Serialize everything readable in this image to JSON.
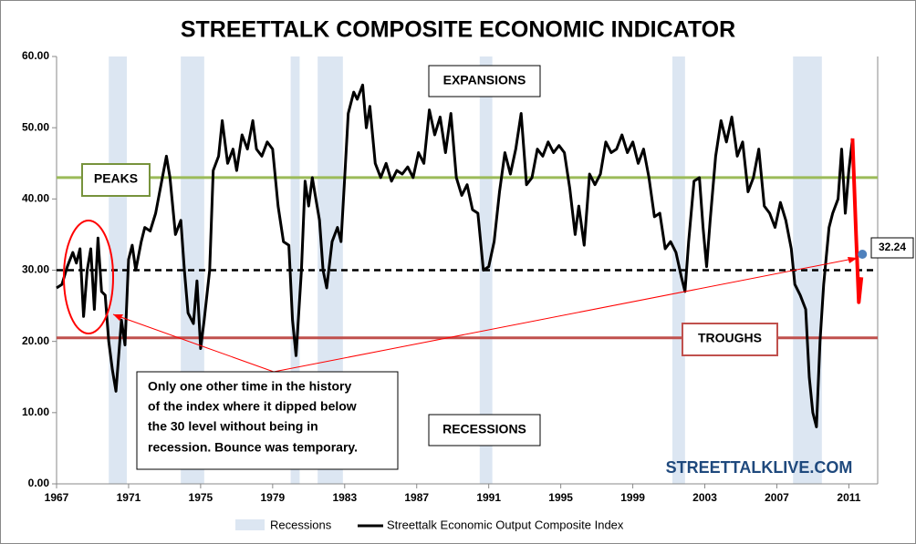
{
  "chart_data": {
    "type": "line",
    "title": "STREETTALK COMPOSITE ECONOMIC INDICATOR",
    "xlim": [
      1967,
      2012.6
    ],
    "xticks": [
      1967,
      1971,
      1975,
      1979,
      1983,
      1987,
      1991,
      1995,
      1999,
      2003,
      2007,
      2011
    ],
    "ylim": [
      0,
      60
    ],
    "yticks": [
      {
        "value": 0,
        "label": "0.00"
      },
      {
        "value": 10,
        "label": "10.00"
      },
      {
        "value": 20,
        "label": "20.00"
      },
      {
        "value": 30,
        "label": "30.00"
      },
      {
        "value": 40,
        "label": "40.00"
      },
      {
        "value": 50,
        "label": "50.00"
      },
      {
        "value": 60,
        "label": "60.00"
      }
    ],
    "recessions": {
      "name": "Recessions",
      "color": "#dce6f2",
      "ranges": [
        [
          1969.9,
          1970.9
        ],
        [
          1973.9,
          1975.2
        ],
        [
          1980.0,
          1980.5
        ],
        [
          1981.5,
          1982.9
        ],
        [
          1990.5,
          1991.2
        ],
        [
          2001.2,
          2001.9
        ],
        [
          2007.9,
          2009.5
        ]
      ]
    },
    "series": [
      {
        "name": "Streettalk Economic Output Composite Index",
        "color": "#000000",
        "x": [
          1967.0,
          1967.3,
          1967.6,
          1967.9,
          1968.1,
          1968.3,
          1968.5,
          1968.7,
          1968.9,
          1969.1,
          1969.3,
          1969.5,
          1969.7,
          1969.9,
          1970.1,
          1970.3,
          1970.6,
          1970.8,
          1971.0,
          1971.2,
          1971.4,
          1971.7,
          1971.9,
          1972.2,
          1972.5,
          1972.8,
          1973.1,
          1973.3,
          1973.6,
          1973.9,
          1974.1,
          1974.3,
          1974.6,
          1974.8,
          1975.0,
          1975.2,
          1975.5,
          1975.7,
          1976.0,
          1976.2,
          1976.5,
          1976.8,
          1977.0,
          1977.3,
          1977.6,
          1977.9,
          1978.1,
          1978.4,
          1978.7,
          1979.0,
          1979.3,
          1979.6,
          1979.9,
          1980.1,
          1980.3,
          1980.6,
          1980.8,
          1981.0,
          1981.2,
          1981.4,
          1981.6,
          1981.8,
          1982.0,
          1982.3,
          1982.6,
          1982.8,
          1983.0,
          1983.2,
          1983.5,
          1983.7,
          1984.0,
          1984.2,
          1984.4,
          1984.7,
          1985.0,
          1985.3,
          1985.6,
          1985.9,
          1986.2,
          1986.5,
          1986.8,
          1987.1,
          1987.4,
          1987.7,
          1988.0,
          1988.3,
          1988.6,
          1988.9,
          1989.2,
          1989.5,
          1989.8,
          1990.1,
          1990.4,
          1990.7,
          1991.0,
          1991.3,
          1991.6,
          1991.9,
          1992.2,
          1992.5,
          1992.8,
          1993.1,
          1993.4,
          1993.7,
          1994.0,
          1994.3,
          1994.6,
          1994.9,
          1995.2,
          1995.5,
          1995.8,
          1996.0,
          1996.3,
          1996.6,
          1996.9,
          1997.2,
          1997.5,
          1997.8,
          1998.1,
          1998.4,
          1998.7,
          1999.0,
          1999.3,
          1999.6,
          1999.9,
          2000.2,
          2000.5,
          2000.8,
          2001.1,
          2001.4,
          2001.7,
          2001.9,
          2002.1,
          2002.4,
          2002.7,
          2002.9,
          2003.1,
          2003.3,
          2003.6,
          2003.9,
          2004.2,
          2004.5,
          2004.8,
          2005.1,
          2005.4,
          2005.7,
          2006.0,
          2006.3,
          2006.6,
          2006.9,
          2007.2,
          2007.5,
          2007.8,
          2008.0,
          2008.3,
          2008.6,
          2008.8,
          2009.0,
          2009.2,
          2009.4,
          2009.6,
          2009.9,
          2010.1,
          2010.4,
          2010.6,
          2010.8,
          2011.0,
          2011.2
        ],
        "values": [
          27.5,
          28,
          30.5,
          32.5,
          31,
          33,
          23.5,
          30,
          33,
          24.5,
          34.5,
          27,
          26.5,
          20,
          16,
          13,
          23,
          19.5,
          31.5,
          33.5,
          30,
          34,
          36,
          35.5,
          38,
          42,
          46,
          43,
          35,
          37,
          30,
          24,
          22.5,
          28.5,
          19,
          23,
          30,
          44,
          46,
          51,
          45,
          47,
          44,
          49,
          47,
          51,
          47,
          46,
          48,
          47,
          39,
          34,
          33.5,
          23,
          18,
          30,
          42.5,
          39,
          43,
          40,
          37,
          30,
          27.5,
          34,
          36,
          34,
          43,
          52,
          55,
          54,
          56,
          50,
          53,
          45,
          43,
          45,
          42.5,
          44,
          43.5,
          44.5,
          43,
          46.5,
          45,
          52.5,
          49,
          51.5,
          46.5,
          52,
          43,
          40.5,
          42,
          38.5,
          38,
          30,
          30.5,
          34,
          41,
          46.5,
          43.5,
          47,
          52,
          42,
          43,
          47,
          46,
          48,
          46.5,
          47.5,
          46.5,
          41.5,
          35,
          39,
          33.5,
          43.5,
          42,
          43.5,
          48,
          46.5,
          47,
          49,
          46.5,
          48,
          45,
          47,
          43,
          37.5,
          38,
          33,
          34,
          32.5,
          29,
          27,
          34,
          42.5,
          43,
          36,
          30.5,
          37,
          46,
          51,
          48,
          51.5,
          46,
          48,
          41,
          43,
          47,
          39,
          38,
          36,
          39.5,
          37,
          33,
          28,
          26.5,
          24.5,
          15,
          10,
          8,
          20,
          28,
          36,
          38,
          40,
          47,
          38,
          44,
          48.5
        ]
      }
    ],
    "projection": {
      "color": "#ff0000",
      "x": [
        2011.2,
        2011.4,
        2011.55,
        2011.7
      ],
      "values": [
        48.5,
        35,
        25.5,
        29
      ]
    },
    "marker": {
      "x": 2011.75,
      "value": 32.24,
      "color": "#4f81bd"
    },
    "reference_lines": [
      {
        "value": 43,
        "color": "#9bbb59",
        "style": "solid"
      },
      {
        "value": 30,
        "color": "#000000",
        "style": "dashed"
      },
      {
        "value": 20.5,
        "color": "#c0504d",
        "style": "solid"
      }
    ],
    "annotations": {
      "expansions": "EXPANSIONS",
      "recessions": "RECESSIONS",
      "peaks": "PEAKS",
      "troughs": "TROUGHS",
      "note": [
        "Only one other time in the history",
        "of the index where it dipped below",
        "the 30 level without being in",
        "recession.  Bounce was temporary."
      ],
      "watermark": "STREETTALKLIVE.COM"
    }
  }
}
